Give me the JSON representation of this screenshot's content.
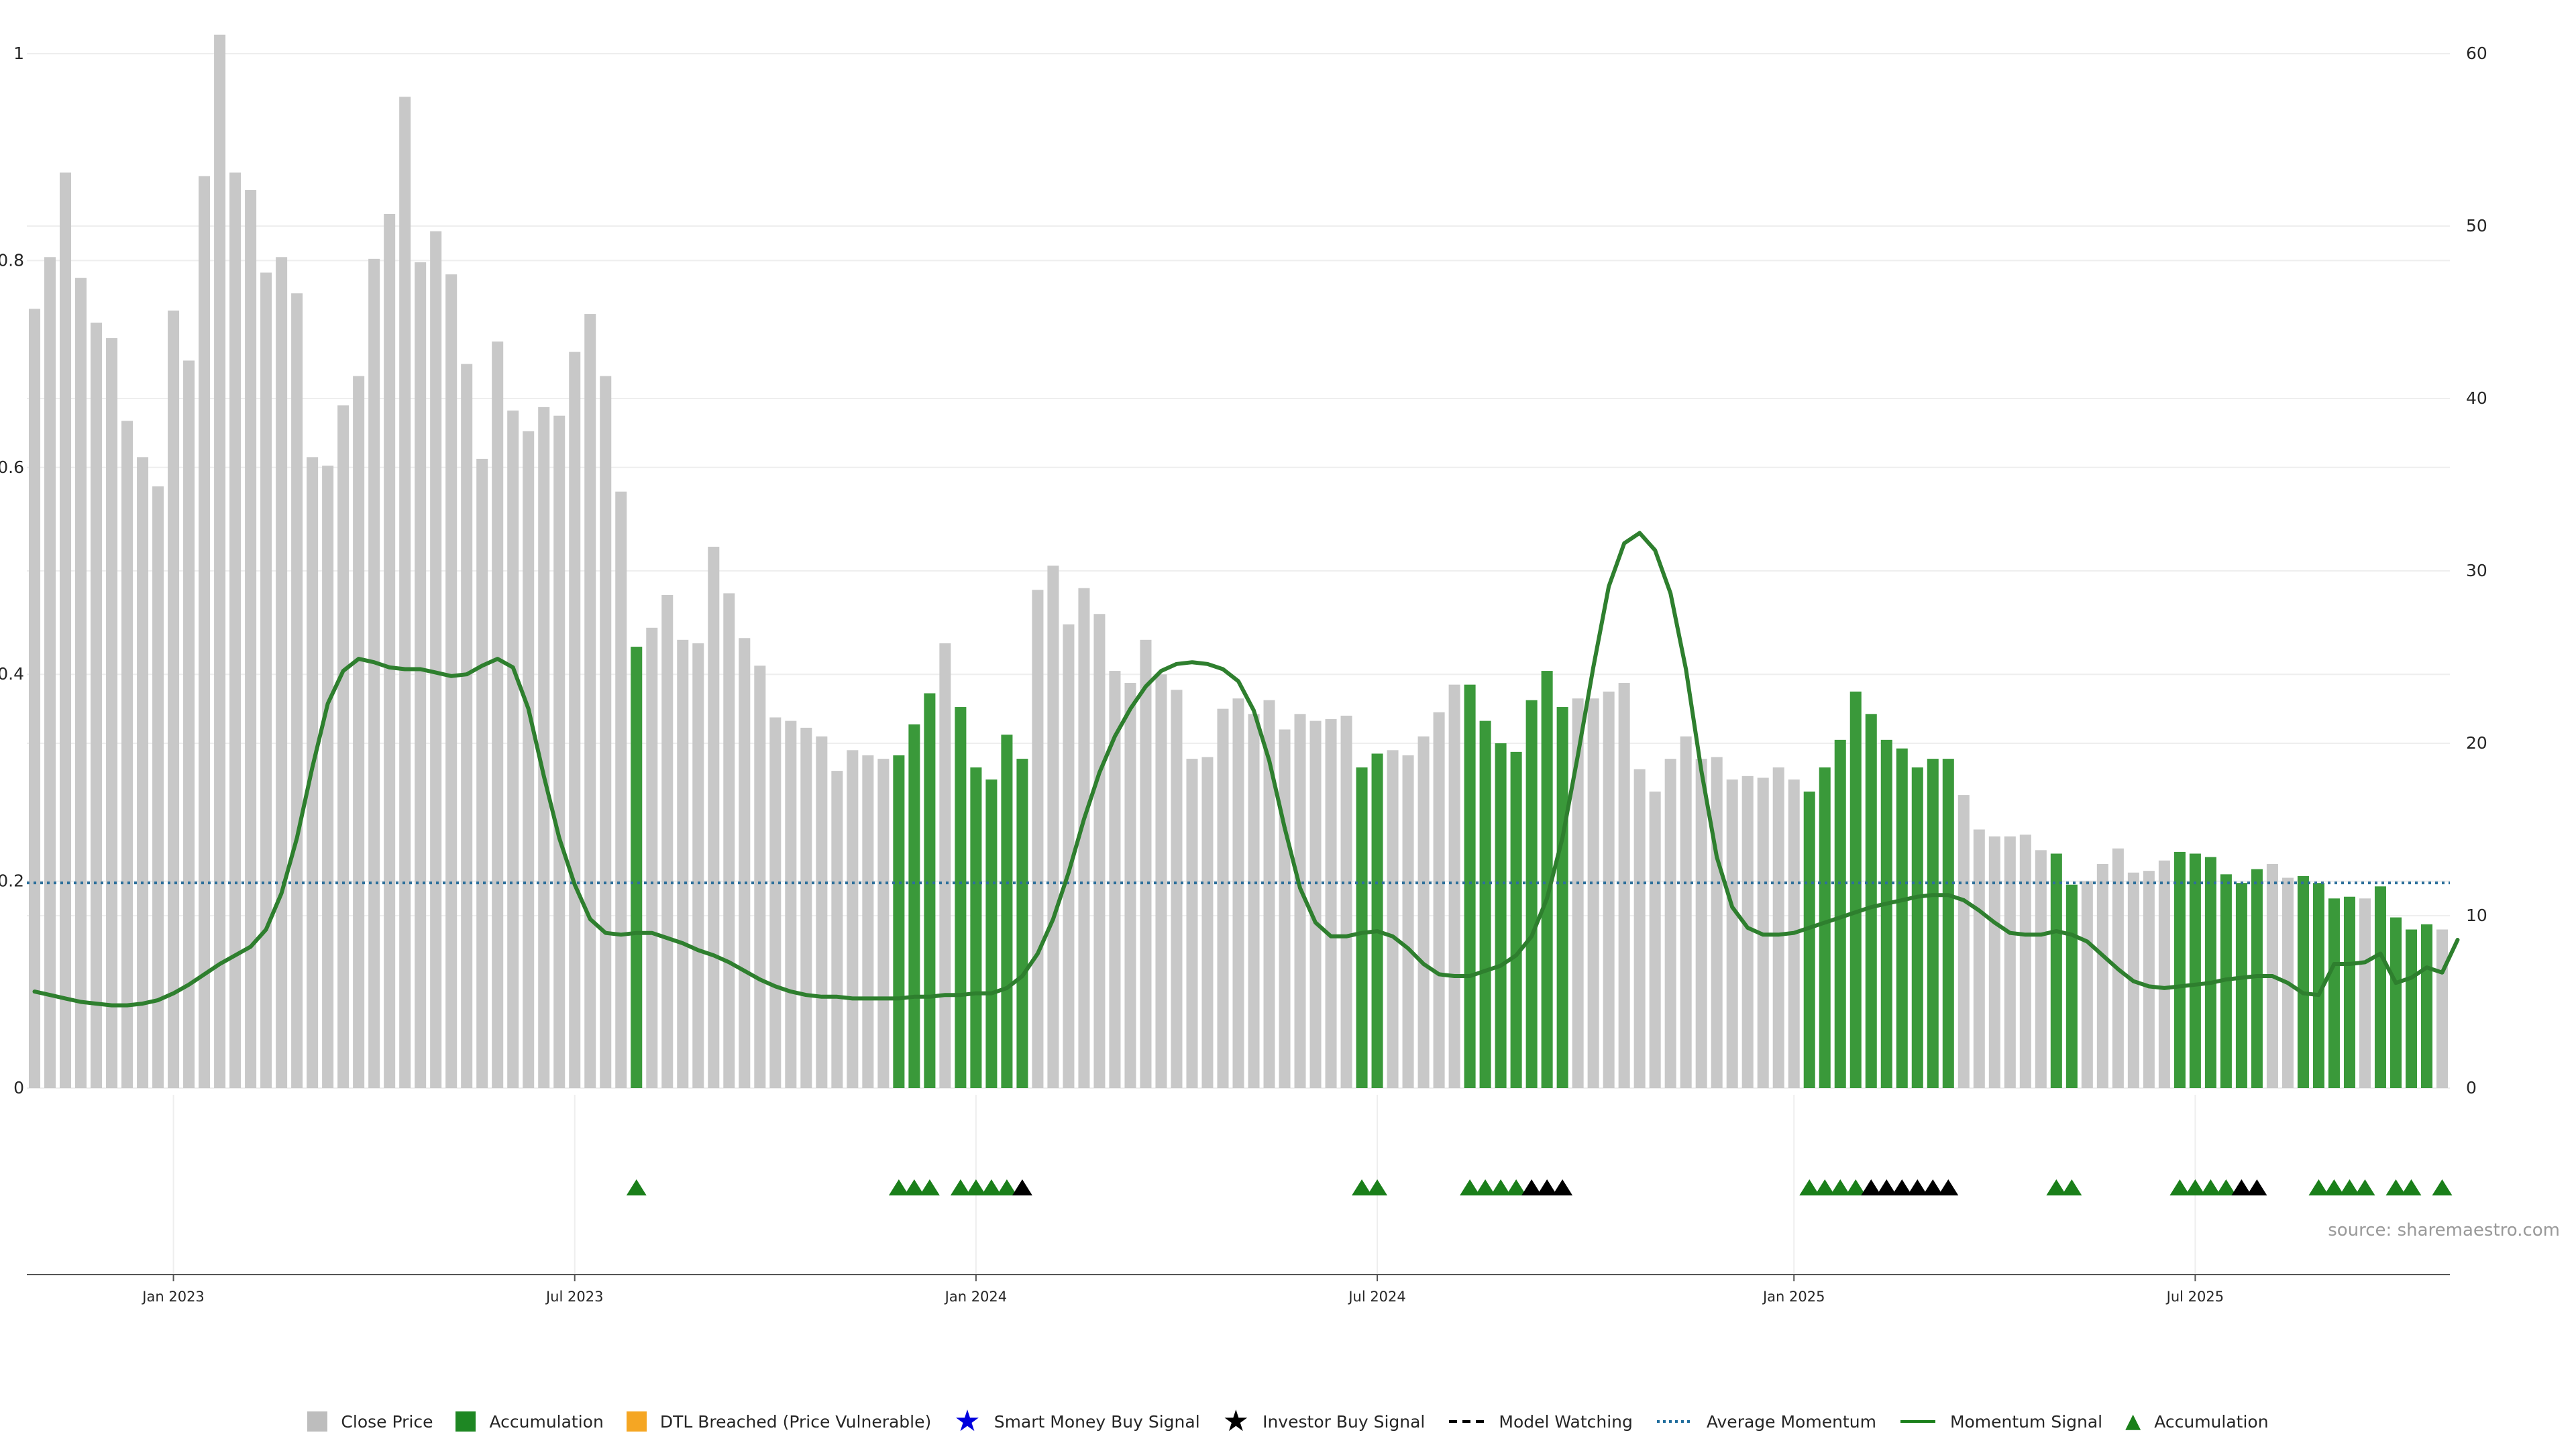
{
  "chart_data": {
    "type": "bar",
    "left_axis": {
      "ticks": [
        "0",
        "0.2",
        "0.4",
        "0.6",
        "0.8",
        "1"
      ],
      "range": [
        0,
        1
      ]
    },
    "right_axis": {
      "ticks": [
        "0",
        "10",
        "20",
        "30",
        "40",
        "50",
        "60"
      ],
      "range": [
        0,
        60
      ]
    },
    "x_ticks": [
      {
        "label": "Jan 2023",
        "index": 9
      },
      {
        "label": "Jul 2023",
        "index": 35
      },
      {
        "label": "Jan 2024",
        "index": 61
      },
      {
        "label": "Jul 2024",
        "index": 87
      },
      {
        "label": "Jan 2025",
        "index": 114
      },
      {
        "label": "Jul 2025",
        "index": 140
      }
    ],
    "close_price": [
      45.2,
      48.2,
      53.1,
      47.0,
      44.4,
      43.5,
      38.7,
      36.6,
      34.9,
      45.1,
      42.2,
      52.9,
      61.1,
      53.1,
      52.1,
      47.3,
      48.2,
      46.1,
      36.6,
      36.1,
      39.6,
      41.3,
      48.1,
      50.7,
      57.5,
      47.9,
      49.7,
      47.2,
      42.0,
      36.5,
      43.3,
      39.3,
      38.1,
      39.5,
      39.0,
      42.7,
      44.9,
      41.3,
      34.6,
      25.6,
      26.7,
      28.6,
      26.0,
      25.8,
      31.4,
      28.7,
      26.1,
      24.5,
      21.5,
      21.3,
      20.9,
      20.4,
      18.4,
      19.6,
      19.3,
      19.1,
      19.3,
      21.1,
      22.9,
      25.8,
      22.1,
      18.6,
      17.9,
      20.5,
      19.1,
      28.9,
      30.3,
      26.9,
      29.0,
      27.5,
      24.2,
      23.5,
      26.0,
      24.0,
      23.1,
      19.1,
      19.2,
      22.0,
      22.6,
      21.7,
      22.5,
      20.8,
      21.7,
      21.3,
      21.4,
      21.6,
      18.6,
      19.4,
      19.6,
      19.3,
      20.4,
      21.8,
      23.4,
      23.4,
      21.3,
      20.0,
      19.5,
      22.5,
      24.2,
      22.1,
      22.6,
      22.6,
      23.0,
      23.5,
      18.5,
      17.2,
      19.1,
      20.4,
      19.1,
      19.2,
      17.9,
      18.1,
      18.0,
      18.6,
      17.9,
      17.2,
      18.6,
      20.2,
      23.0,
      21.7,
      20.2,
      19.7,
      18.6,
      19.1,
      19.1,
      17.0,
      15.0,
      14.6,
      14.6,
      14.7,
      13.8,
      13.6,
      11.8,
      12.0,
      13.0,
      13.9,
      12.5,
      12.6,
      13.2,
      13.7,
      13.6,
      13.4,
      12.4,
      11.9,
      12.7,
      13.0,
      12.2,
      12.3,
      11.9,
      11.0,
      11.1,
      11.0,
      11.7,
      9.9,
      9.2,
      9.5,
      9.2
    ],
    "accumulation_ranges": [
      [
        39,
        39
      ],
      [
        56,
        58
      ],
      [
        60,
        64
      ],
      [
        86,
        87
      ],
      [
        93,
        99
      ],
      [
        115,
        124
      ],
      [
        131,
        132
      ],
      [
        139,
        144
      ],
      [
        147,
        150
      ],
      [
        152,
        155
      ]
    ],
    "momentum_signal": [
      5.6,
      5.4,
      5.2,
      5.0,
      4.9,
      4.8,
      4.8,
      4.9,
      5.1,
      5.5,
      6.0,
      6.6,
      7.2,
      7.7,
      8.2,
      9.2,
      11.3,
      14.5,
      18.6,
      22.3,
      24.2,
      24.9,
      24.7,
      24.4,
      24.3,
      24.3,
      24.1,
      23.9,
      24.0,
      24.5,
      24.9,
      24.4,
      22.0,
      18.1,
      14.5,
      11.8,
      9.8,
      9.0,
      8.9,
      9.0,
      9.0,
      8.7,
      8.4,
      8.0,
      7.7,
      7.3,
      6.8,
      6.3,
      5.9,
      5.6,
      5.4,
      5.3,
      5.3,
      5.2,
      5.2,
      5.2,
      5.2,
      5.3,
      5.3,
      5.4,
      5.4,
      5.5,
      5.5,
      5.8,
      6.5,
      7.8,
      9.8,
      12.5,
      15.6,
      18.3,
      20.4,
      22.0,
      23.3,
      24.2,
      24.6,
      24.7,
      24.6,
      24.3,
      23.6,
      21.9,
      19.0,
      15.1,
      11.6,
      9.6,
      8.8,
      8.8,
      9.0,
      9.1,
      8.8,
      8.1,
      7.2,
      6.6,
      6.5,
      6.5,
      6.8,
      7.1,
      7.7,
      8.8,
      11.0,
      14.5,
      19.3,
      24.4,
      29.1,
      31.6,
      32.2,
      31.2,
      28.7,
      24.3,
      18.4,
      13.4,
      10.5,
      9.3,
      8.9,
      8.9,
      9.0,
      9.3,
      9.6,
      9.9,
      10.2,
      10.5,
      10.7,
      10.9,
      11.1,
      11.2,
      11.2,
      10.9,
      10.3,
      9.6,
      9.0,
      8.9,
      8.9,
      9.1,
      8.9,
      8.5,
      7.7,
      6.9,
      6.2,
      5.9,
      5.8,
      5.9,
      6.0,
      6.1,
      6.3,
      6.4,
      6.5,
      6.5,
      6.1,
      5.5,
      5.4,
      7.2,
      7.2,
      7.3,
      7.8,
      6.1,
      6.4,
      7.0,
      6.7,
      8.6
    ],
    "average_momentum": 11.9,
    "triangles": {
      "green": [
        39,
        56,
        57,
        58,
        60,
        61,
        62,
        63,
        86,
        87,
        93,
        94,
        95,
        96,
        115,
        116,
        117,
        118,
        131,
        132,
        139,
        140,
        141,
        142,
        148,
        149,
        150,
        151,
        153,
        154,
        156
      ],
      "black": [
        64,
        97,
        98,
        99,
        119,
        120,
        121,
        122,
        123,
        124,
        143,
        144
      ]
    },
    "legend": [
      {
        "label": "Close Price",
        "symbol": "square",
        "color": "#bdbdbd"
      },
      {
        "label": "Accumulation",
        "symbol": "square",
        "color": "#1e8723"
      },
      {
        "label": "DTL Breached (Price Vulnerable)",
        "symbol": "square",
        "color": "#f5a623"
      },
      {
        "label": "Smart Money Buy Signal",
        "symbol": "star-icon",
        "color": "#0000dd"
      },
      {
        "label": "Investor Buy Signal",
        "symbol": "star-icon",
        "color": "#000000"
      },
      {
        "label": "Model Watching",
        "symbol": "dashed-line",
        "color": "#000000"
      },
      {
        "label": "Average Momentum",
        "symbol": "dotted-line",
        "color": "#1f6c9c"
      },
      {
        "label": "Momentum Signal",
        "symbol": "solid-line",
        "color": "#1a7f1a"
      },
      {
        "label": "Accumulation",
        "symbol": "triangle-icon",
        "color": "#1a7f1a"
      }
    ],
    "colors": {
      "close": "#c8c8c8",
      "accumulation": "#3a993a",
      "momentum": "#2e7f2e",
      "momentum_peak": "#0f7a0f",
      "average": "#2c6f9b",
      "grid": "#eeeeee"
    }
  },
  "source": "source: sharemaestro.com"
}
